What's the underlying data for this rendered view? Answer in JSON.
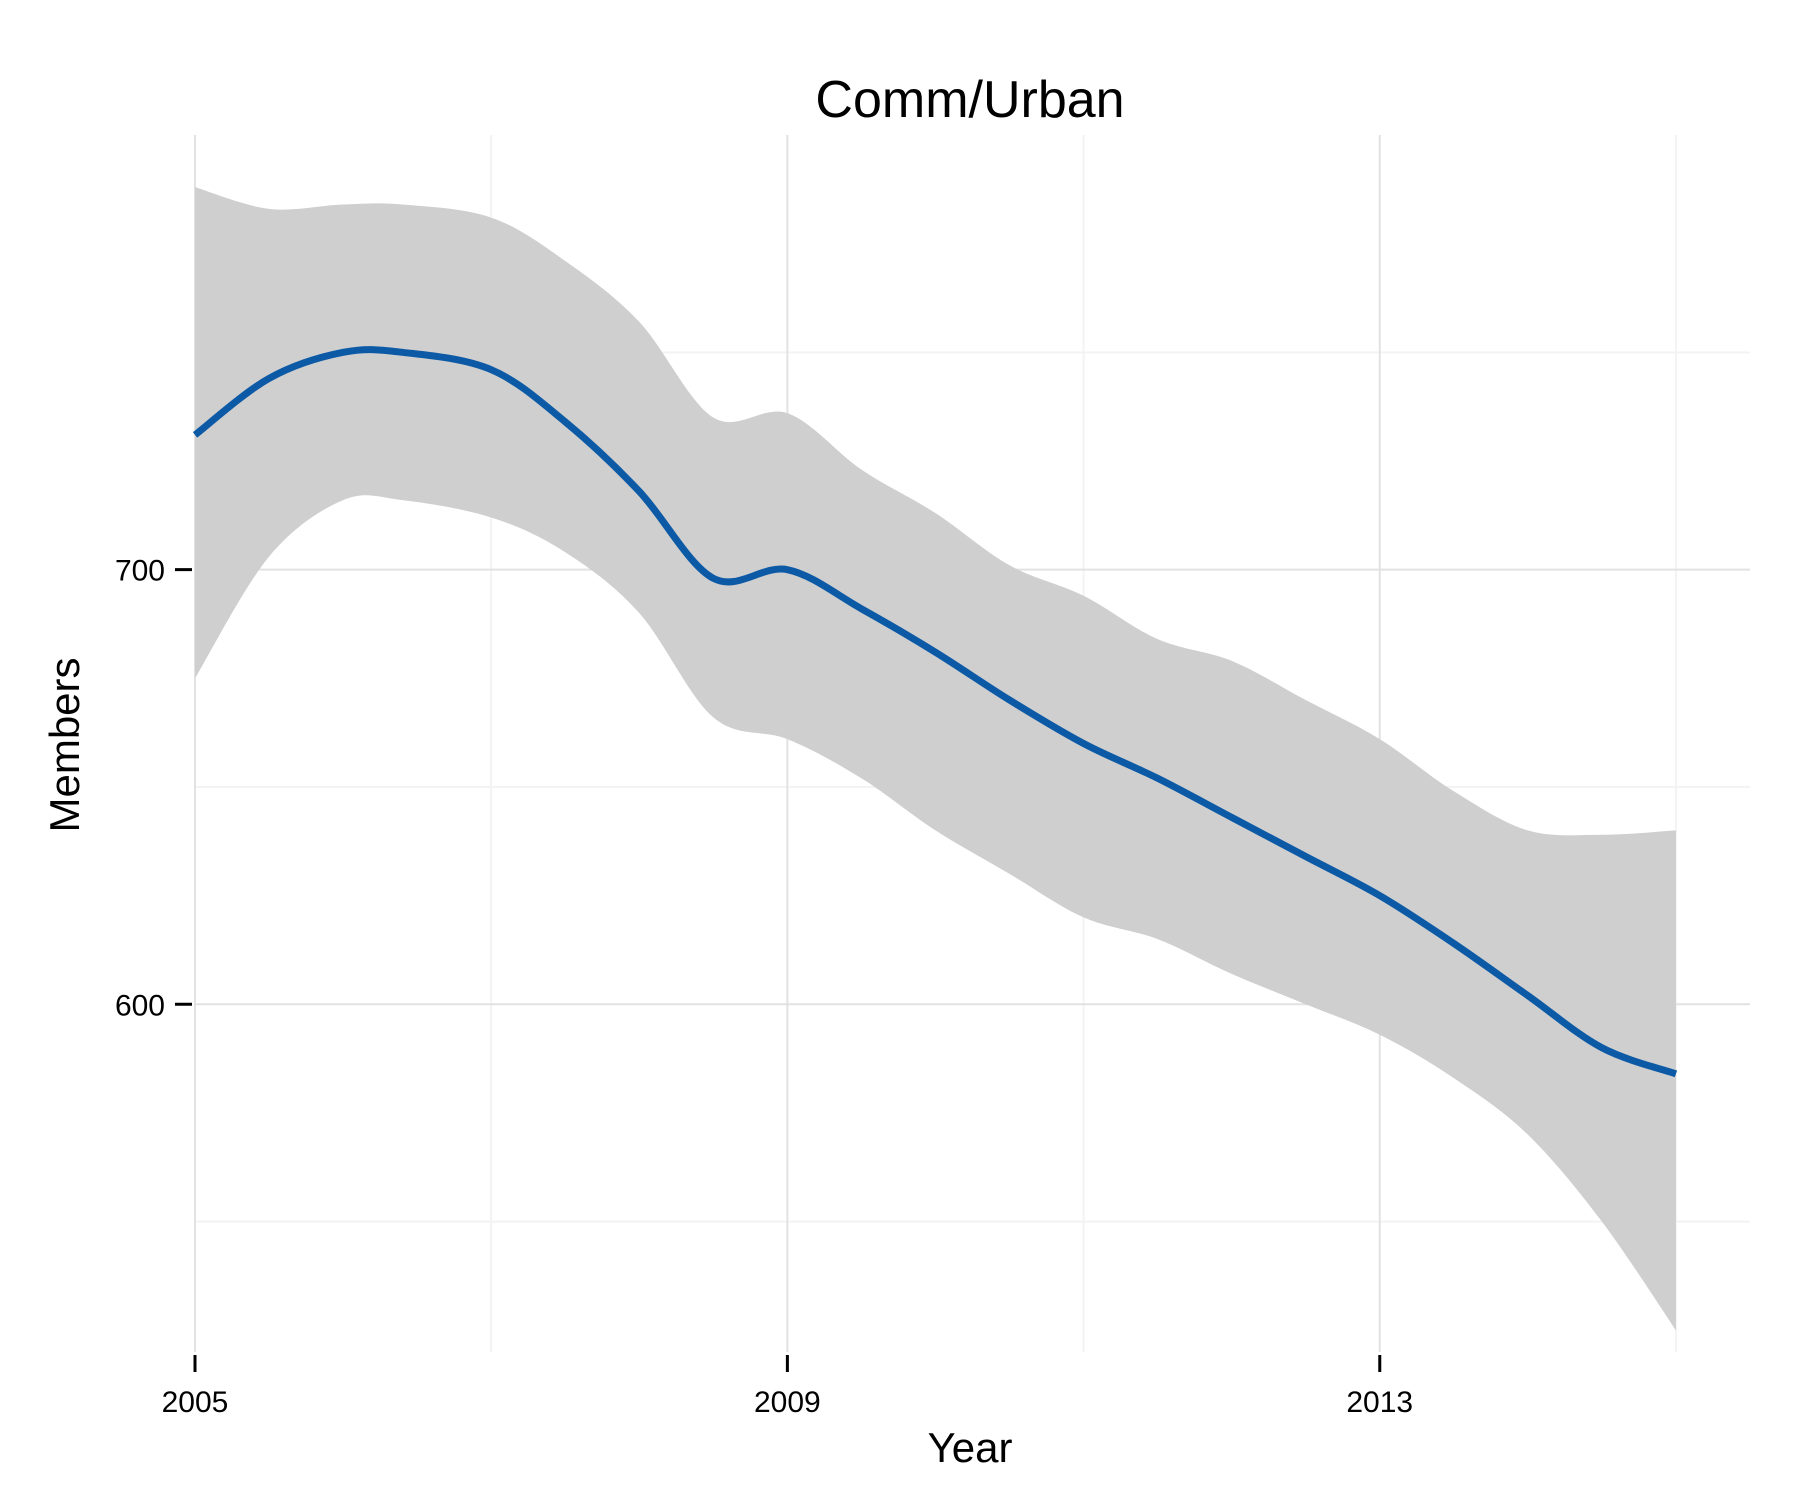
{
  "chart_data": {
    "type": "area",
    "title": "Comm/Urban",
    "xlabel": "Year",
    "ylabel": "Members",
    "xlim": [
      2005,
      2015.5
    ],
    "ylim": [
      520,
      800
    ],
    "x_ticks": [
      2005,
      2009,
      2013
    ],
    "y_ticks": [
      600,
      700
    ],
    "grid": true,
    "colors": {
      "line": "#0c5aa6",
      "band": "#cfcfcf",
      "grid_major": "#e2e2e2",
      "grid_minor": "#f3f3f3"
    },
    "series": [
      {
        "x": [
          2005,
          2005.5,
          2006,
          2006.4,
          2007,
          2007.5,
          2008,
          2008.5,
          2009,
          2009.5,
          2010,
          2010.5,
          2011,
          2011.5,
          2012,
          2012.5,
          2013,
          2013.5,
          2014,
          2014.5,
          2015
        ],
        "y": [
          731,
          744,
          750,
          750,
          746,
          734,
          718,
          698,
          700,
          691,
          681,
          670,
          660,
          652,
          643,
          634,
          625,
          614,
          602,
          590,
          584
        ],
        "lower": [
          675,
          703,
          716,
          716,
          712,
          704,
          690,
          666,
          661,
          652,
          640,
          630,
          620,
          615,
          607,
          600,
          593,
          583,
          570,
          550,
          525
        ],
        "upper": [
          788,
          783,
          784,
          784,
          781,
          771,
          757,
          735,
          736,
          723,
          713,
          701,
          694,
          684,
          679,
          670,
          661,
          649,
          640,
          639,
          640
        ]
      }
    ]
  }
}
